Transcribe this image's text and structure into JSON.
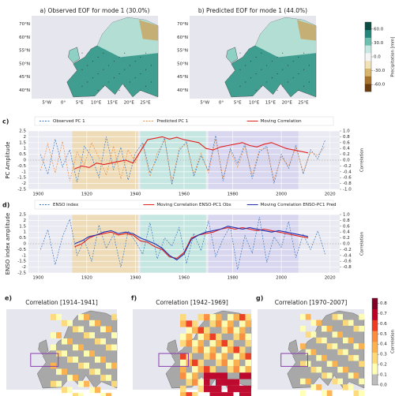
{
  "chart_data": [
    {
      "type": "map",
      "title": "a) Observed EOF for mode 1 (30.0%)",
      "lat_labels": [
        "70°N",
        "60°N",
        "55°N",
        "50°N",
        "45°N",
        "40°N"
      ],
      "lon_labels": [
        "5°W",
        "0°",
        "5°E",
        "10°E",
        "15°E",
        "20°E",
        "25°E"
      ]
    },
    {
      "type": "map",
      "title": "b) Predicted EOF for mode 1 (44.0%)",
      "lat_labels": [
        "70°N",
        "60°N",
        "55°N",
        "50°N",
        "45°N",
        "40°N"
      ],
      "lon_labels": [
        "5°W",
        "0°",
        "5°E",
        "10°E",
        "15°E",
        "20°E",
        "25°E"
      ],
      "colorbar": {
        "label": "Precipitation [mm]",
        "lim": [
          -75,
          75
        ],
        "colors": [
          "#6b3d0e",
          "#a8732b",
          "#d9b56b",
          "#f1e2b8",
          "#f5f5f5",
          "#c7e8e2",
          "#6cc0b0",
          "#24877c",
          "#0b4d44"
        ],
        "ticks": [
          {
            "value": 60,
            "label": "60.0"
          },
          {
            "value": 30,
            "label": "30.0"
          },
          {
            "value": 0,
            "label": "0.0"
          },
          {
            "value": -30,
            "label": "-30.0"
          },
          {
            "value": -60,
            "label": "-60.0"
          }
        ]
      }
    },
    {
      "type": "line",
      "panel": "c)",
      "ylabel": "PC Amplitude",
      "y2label": "Correlation",
      "xlim": [
        1896,
        2024
      ],
      "xticks": [
        1900,
        1920,
        1940,
        1960,
        1980,
        2000,
        2020
      ],
      "ylim": [
        -2.5,
        2.5
      ],
      "yticks": [
        -2.5,
        -2.0,
        -1.5,
        -1.0,
        -0.5,
        0.0,
        0.5,
        1.0,
        1.5,
        2.0,
        2.5
      ],
      "y2lim": [
        -1.0,
        1.0
      ],
      "y2ticks": [
        {
          "value": -1,
          "label": "-1.0"
        },
        -0.8,
        -0.6,
        -0.4,
        -0.2,
        {
          "value": 0,
          "label": "0.0"
        },
        0.2,
        0.4,
        0.6,
        0.8,
        {
          "value": 1,
          "label": "1.0"
        }
      ],
      "spans": [
        {
          "start": 1914,
          "end": 1941,
          "color": "#eed9ae"
        },
        {
          "start": 1942,
          "end": 1969,
          "color": "#bfe6de"
        },
        {
          "start": 1970,
          "end": 2007,
          "color": "#d6d3ee"
        }
      ],
      "series": [
        {
          "name": "Observed PC 1",
          "color": "#3a78c2",
          "dash": true,
          "x": [
            1901,
            1904,
            1907,
            1910,
            1913,
            1916,
            1919,
            1922,
            1925,
            1928,
            1931,
            1934,
            1937,
            1940,
            1943,
            1946,
            1949,
            1952,
            1955,
            1958,
            1961,
            1964,
            1967,
            1970,
            1973,
            1976,
            1979,
            1982,
            1985,
            1988,
            1991,
            1994,
            1997,
            2000,
            2003,
            2006,
            2009,
            2012,
            2015,
            2018
          ],
          "values": [
            0.5,
            -1.2,
            1.8,
            -0.6,
            0.9,
            -1.9,
            1.2,
            0.3,
            -1.5,
            2.0,
            -0.8,
            1.1,
            -1.7,
            0.6,
            1.5,
            -1.1,
            0.2,
            1.9,
            -2.1,
            0.8,
            1.6,
            -1.4,
            0.4,
            -0.9,
            2.1,
            -1.8,
            1.0,
            -0.3,
            1.4,
            -1.6,
            0.7,
            1.2,
            -2.0,
            0.5,
            -0.7,
            1.3,
            -1.2,
            0.9,
            0.1,
            1.7
          ]
        },
        {
          "name": "Predicted PC 1",
          "color": "#f08a3c",
          "dash": true,
          "x": [
            1901,
            1904,
            1907,
            1910,
            1913,
            1916,
            1919,
            1922,
            1925,
            1928,
            1931,
            1934,
            1937,
            1940,
            1943,
            1946,
            1949,
            1952,
            1955,
            1958,
            1961,
            1964,
            1967,
            1970,
            1973,
            1976,
            1979,
            1982,
            1985,
            1988,
            1991,
            1994,
            1997,
            2000,
            2003,
            2006,
            2009,
            2012,
            2015,
            2018
          ],
          "values": [
            -0.9,
            1.4,
            -1.1,
            1.6,
            -1.8,
            0.7,
            -0.4,
            1.5,
            0.2,
            -1.3,
            1.2,
            -1.6,
            0.9,
            -0.2,
            1.3,
            -1.4,
            0.6,
            1.7,
            -1.9,
            1.0,
            1.4,
            -1.2,
            0.6,
            -1.1,
            1.8,
            -1.5,
            0.8,
            -0.6,
            1.2,
            -1.3,
            0.9,
            1.0,
            -1.7,
            0.3,
            -0.5,
            1.1,
            -1.0,
            0.7,
            0.4,
            1.2
          ]
        },
        {
          "name": "Moving Correlation",
          "color": "#e02020",
          "axis": "y2",
          "x": [
            1915,
            1918,
            1921,
            1924,
            1927,
            1930,
            1933,
            1936,
            1939,
            1942,
            1945,
            1948,
            1951,
            1954,
            1957,
            1960,
            1963,
            1966,
            1969,
            1972,
            1975,
            1978,
            1981,
            1984,
            1987,
            1990,
            1993,
            1996,
            1999,
            2002,
            2005,
            2008,
            2011
          ],
          "values": [
            -0.3,
            -0.2,
            -0.25,
            -0.1,
            -0.15,
            -0.1,
            -0.05,
            0.0,
            -0.1,
            0.3,
            0.7,
            0.75,
            0.8,
            0.72,
            0.78,
            0.7,
            0.65,
            0.6,
            0.4,
            0.35,
            0.45,
            0.5,
            0.55,
            0.6,
            0.5,
            0.45,
            0.55,
            0.6,
            0.5,
            0.4,
            0.35,
            0.3,
            0.25
          ]
        }
      ]
    },
    {
      "type": "line",
      "panel": "d)",
      "ylabel": "ENSO index amplitude",
      "y2label": "Correlation",
      "xlim": [
        1896,
        2024
      ],
      "xticks": [
        1900,
        1920,
        1940,
        1960,
        1980,
        2000,
        2020
      ],
      "ylim": [
        -2.5,
        2.5
      ],
      "yticks": [
        -2.5,
        -2.0,
        -1.5,
        -1.0,
        -0.5,
        0.0,
        0.5,
        1.0,
        1.5,
        2.0,
        2.5
      ],
      "y2lim": [
        -1.0,
        1.0
      ],
      "y2ticks": [
        -0.8,
        -0.6,
        -0.4,
        -0.2,
        {
          "value": 0,
          "label": "0.0"
        },
        0.2,
        0.4,
        0.6,
        0.8,
        {
          "value": 1,
          "label": "1.0"
        }
      ],
      "spans": [
        {
          "start": 1914,
          "end": 1941,
          "color": "#eed9ae"
        },
        {
          "start": 1942,
          "end": 1969,
          "color": "#bfe6de"
        },
        {
          "start": 1970,
          "end": 2007,
          "color": "#d6d3ee"
        }
      ],
      "series": [
        {
          "name": "ENSO index",
          "color": "#3a78c2",
          "dash": true,
          "x": [
            1901,
            1904,
            1907,
            1910,
            1913,
            1916,
            1919,
            1922,
            1925,
            1928,
            1931,
            1934,
            1937,
            1940,
            1943,
            1946,
            1949,
            1952,
            1955,
            1958,
            1961,
            1964,
            1967,
            1970,
            1973,
            1976,
            1979,
            1982,
            1985,
            1988,
            1991,
            1994,
            1997,
            2000,
            2003,
            2006,
            2009,
            2012,
            2015,
            2018
          ],
          "values": [
            -0.5,
            1.2,
            -1.8,
            0.6,
            2.1,
            -1.0,
            0.3,
            -1.5,
            1.6,
            -0.4,
            0.8,
            -2.0,
            1.1,
            0.2,
            -0.9,
            1.8,
            -1.3,
            0.5,
            -0.2,
            1.4,
            -1.7,
            0.9,
            -0.6,
            2.0,
            -1.1,
            0.4,
            1.5,
            -2.2,
            0.7,
            -0.8,
            2.3,
            -1.6,
            0.6,
            -0.3,
            1.9,
            -1.2,
            0.8,
            -0.5,
            1.1,
            -0.9
          ]
        },
        {
          "name": "Moving Correlation ENSO-PC1 Obs",
          "color": "#e02020",
          "axis": "y2",
          "x": [
            1915,
            1918,
            1921,
            1924,
            1927,
            1930,
            1933,
            1936,
            1939,
            1942,
            1945,
            1948,
            1951,
            1954,
            1957,
            1960,
            1963,
            1966,
            1969,
            1972,
            1975,
            1978,
            1981,
            1984,
            1987,
            1990,
            1993,
            1996,
            1999,
            2002,
            2005,
            2008,
            2011
          ],
          "values": [
            -0.1,
            0.0,
            0.2,
            0.3,
            0.35,
            0.4,
            0.3,
            0.35,
            0.3,
            0.1,
            0.05,
            -0.1,
            -0.2,
            -0.45,
            -0.5,
            -0.3,
            0.2,
            0.3,
            0.35,
            0.4,
            0.5,
            0.55,
            0.5,
            0.55,
            0.5,
            0.45,
            0.5,
            0.45,
            0.4,
            0.35,
            0.3,
            0.25,
            0.2
          ]
        },
        {
          "name": "Moving Correlation ENSO-PC1 Pred",
          "color": "#1f2fb0",
          "axis": "y2",
          "x": [
            1915,
            1918,
            1921,
            1924,
            1927,
            1930,
            1933,
            1936,
            1939,
            1942,
            1945,
            1948,
            1951,
            1954,
            1957,
            1960,
            1963,
            1966,
            1969,
            1972,
            1975,
            1978,
            1981,
            1984,
            1987,
            1990,
            1993,
            1996,
            1999,
            2002,
            2005,
            2008,
            2011
          ],
          "values": [
            0.0,
            0.1,
            0.25,
            0.3,
            0.4,
            0.45,
            0.35,
            0.4,
            0.35,
            0.2,
            0.1,
            0.0,
            -0.15,
            -0.4,
            -0.55,
            -0.35,
            0.15,
            0.3,
            0.4,
            0.45,
            0.5,
            0.6,
            0.55,
            0.5,
            0.55,
            0.5,
            0.45,
            0.4,
            0.45,
            0.4,
            0.35,
            0.3,
            0.25
          ]
        }
      ]
    },
    {
      "type": "corrmap",
      "panel": "e)",
      "title": "Correlation [1914–1941]"
    },
    {
      "type": "corrmap",
      "panel": "f)",
      "title": "Correlation [1942–1969]"
    },
    {
      "type": "corrmap",
      "panel": "g)",
      "title": "Correlation [1970–2007]",
      "colorbar": {
        "label": "Correlation",
        "lim": [
          0,
          0.85
        ],
        "colors": [
          "#bdbdbd",
          "#ffffb2",
          "#fed976",
          "#feb24c",
          "#fd8d3c",
          "#f03b20",
          "#bd0026",
          "#800026"
        ],
        "ticks": [
          {
            "value": 0,
            "label": "0.0"
          },
          0.1,
          0.2,
          0.3,
          0.4,
          0.5,
          0.6,
          0.7,
          0.8
        ]
      }
    }
  ]
}
